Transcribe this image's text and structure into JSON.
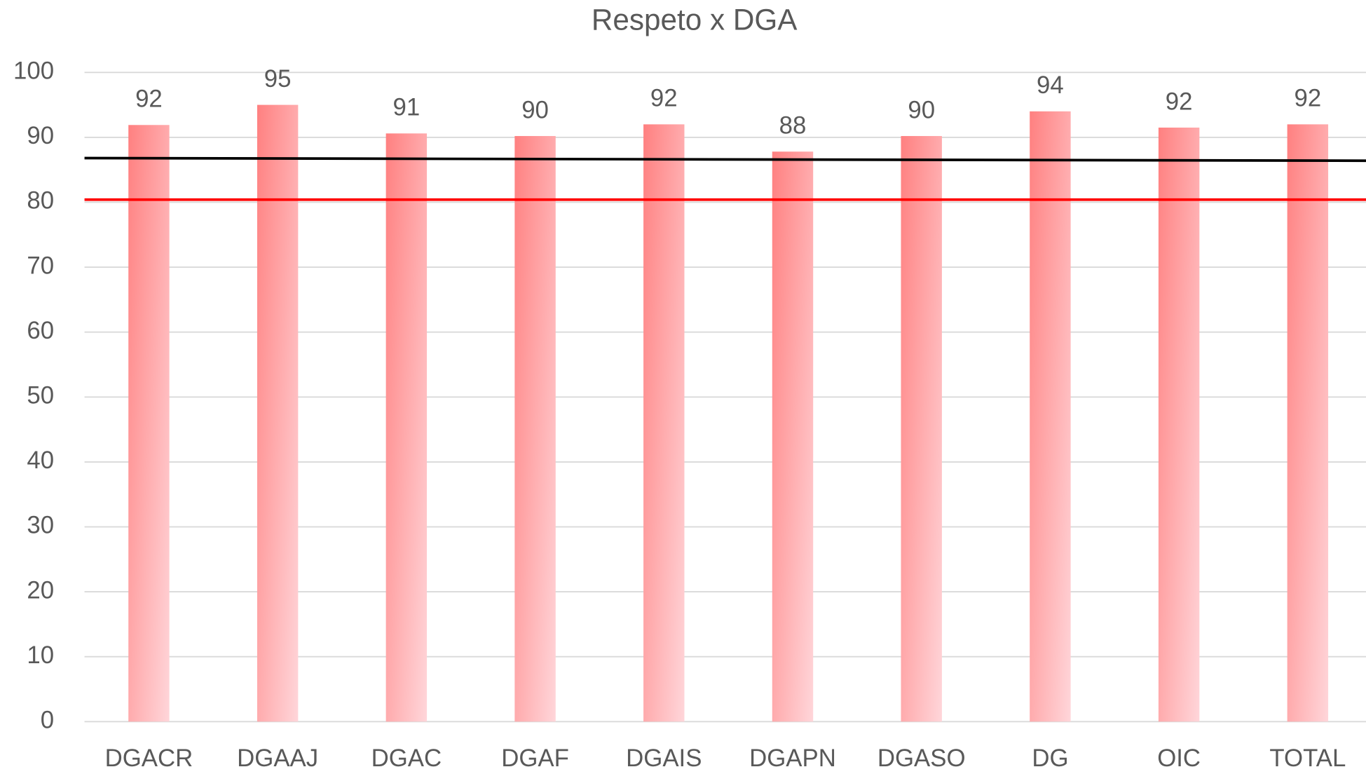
{
  "chart_data": {
    "type": "bar",
    "title": "Respeto x DGA",
    "categories": [
      "DGACR",
      "DGAAJ",
      "DGAC",
      "DGAF",
      "DGAIS",
      "DGAPN",
      "DGASO",
      "DG",
      "OIC",
      "TOTAL"
    ],
    "values": [
      91.9,
      95.0,
      90.6,
      90.2,
      92.0,
      87.8,
      90.2,
      94.0,
      91.5,
      92.0
    ],
    "value_labels": [
      "92",
      "95",
      "91",
      "90",
      "92",
      "88",
      "90",
      "94",
      "92",
      "92"
    ],
    "color": "#ff8080",
    "ylim": [
      0,
      100
    ],
    "yticks": [
      0,
      10,
      20,
      30,
      40,
      50,
      60,
      70,
      80,
      90,
      100
    ],
    "grid": true,
    "reference_lines": [
      {
        "color": "#000000",
        "values": [
          86.8,
          86.4
        ]
      },
      {
        "color": "#ff0000",
        "values": [
          80.4,
          80.4
        ]
      }
    ]
  }
}
